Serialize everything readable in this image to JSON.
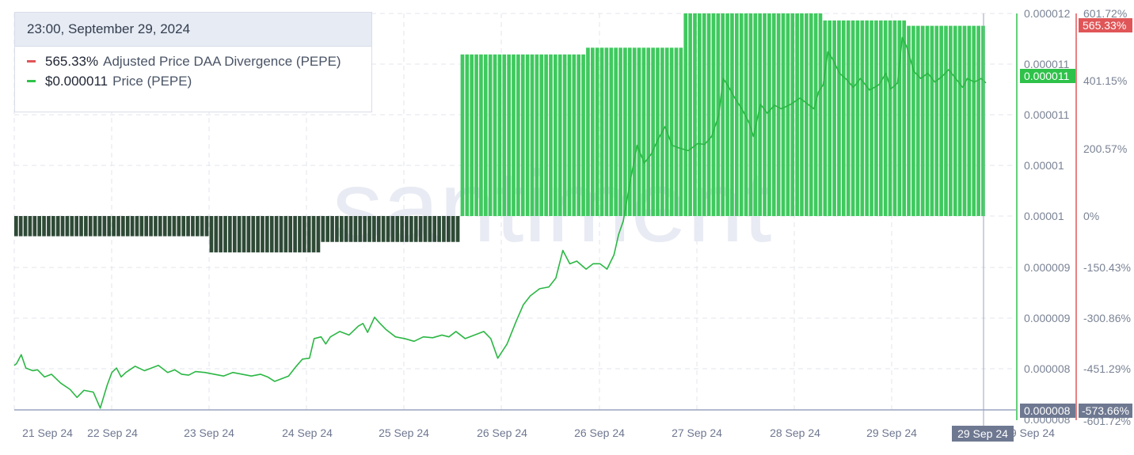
{
  "tooltip": {
    "date": "23:00, September 29, 2024",
    "items": [
      {
        "value": "565.33%",
        "label": "Adjusted Price DAA Divergence (PEPE)",
        "color": "#e05658"
      },
      {
        "value": "$0.000011",
        "label": "Price (PEPE)",
        "color": "#2fc24a"
      }
    ]
  },
  "watermark": "santiment",
  "colors": {
    "price_line": "#2bb744",
    "bar_positive": "#3fc95e",
    "bar_negative": "#2e4a36",
    "divergence_axis": "#e05658",
    "price_axis": "#2fc24a",
    "grid": "#e3e6ec",
    "crosshair": "#9aa3c0"
  },
  "chart_data": {
    "type": "bar+line",
    "x_ticks": [
      "21 Sep 24",
      "22 Sep 24",
      "23 Sep 24",
      "24 Sep 24",
      "25 Sep 24",
      "26 Sep 24",
      "26 Sep 24",
      "27 Sep 24",
      "28 Sep 24",
      "29 Sep 24",
      "29 Sep 24"
    ],
    "crosshair_date": "29 Sep 24",
    "price_axis": {
      "ticks": [
        "0.000012",
        "0.000011",
        "0.000011",
        "0.00001",
        "0.00001",
        "0.000009",
        "0.000009",
        "0.000008",
        "0.000008"
      ],
      "current_label": "0.000011",
      "bottom_label": "0.000008"
    },
    "divergence_axis": {
      "ticks": [
        "601.72%",
        "401.15%",
        "200.57%",
        "0%",
        "-150.43%",
        "-300.86%",
        "-451.29%",
        "-601.72%"
      ],
      "current_label": "565.33%",
      "bottom_label": "-573.66%",
      "range": [
        -601.72,
        601.72
      ]
    },
    "series": [
      {
        "name": "Adjusted Price DAA Divergence (PEPE)",
        "kind": "bar",
        "segments": [
          {
            "from": "21 Sep 24",
            "to": "22 Sep 24 18:00",
            "value": -60
          },
          {
            "from": "22 Sep 24 18:00",
            "to": "23 Sep 24 18:00",
            "value": -108
          },
          {
            "from": "23 Sep 24 18:00",
            "to": "25 Sep 24 00:00",
            "value": -77
          },
          {
            "from": "25 Sep 24 00:00",
            "to": "26 Sep 24 03:00",
            "value": 480
          },
          {
            "from": "26 Sep 24 03:00",
            "to": "27 Sep 24 00:00",
            "value": 500
          },
          {
            "from": "27 Sep 24 00:00",
            "to": "28 Sep 24 06:00",
            "value": 602
          },
          {
            "from": "28 Sep 24 06:00",
            "to": "29 Sep 24 00:00",
            "value": 581
          },
          {
            "from": "29 Sep 24 00:00",
            "to": "29 Sep 24 23:00",
            "value": 565
          }
        ]
      },
      {
        "name": "Price (PEPE)",
        "kind": "line",
        "unit": "USD (millionths)",
        "points": [
          [
            0,
            7.98
          ],
          [
            0.5,
            8.0
          ],
          [
            1.5,
            8.1
          ],
          [
            2.5,
            7.95
          ],
          [
            4,
            7.92
          ],
          [
            5,
            7.93
          ],
          [
            6.5,
            7.85
          ],
          [
            8,
            7.88
          ],
          [
            10,
            7.78
          ],
          [
            12,
            7.71
          ],
          [
            13.5,
            7.62
          ],
          [
            15,
            7.7
          ],
          [
            17,
            7.68
          ],
          [
            18.5,
            7.5
          ],
          [
            20,
            7.76
          ],
          [
            21,
            7.9
          ],
          [
            22,
            7.95
          ],
          [
            23,
            7.85
          ],
          [
            24,
            7.9
          ],
          [
            26,
            7.97
          ],
          [
            28,
            7.92
          ],
          [
            30,
            7.96
          ],
          [
            31,
            7.98
          ],
          [
            33,
            7.9
          ],
          [
            34.5,
            7.93
          ],
          [
            36,
            7.88
          ],
          [
            37.5,
            7.87
          ],
          [
            39,
            7.91
          ],
          [
            41,
            7.9
          ],
          [
            43,
            7.88
          ],
          [
            45,
            7.86
          ],
          [
            47,
            7.9
          ],
          [
            49,
            7.88
          ],
          [
            51,
            7.86
          ],
          [
            53,
            7.88
          ],
          [
            54.5,
            7.85
          ],
          [
            56,
            7.8
          ],
          [
            57.5,
            7.83
          ],
          [
            59,
            7.86
          ],
          [
            60.5,
            7.96
          ],
          [
            62,
            8.05
          ],
          [
            63.5,
            8.06
          ],
          [
            64.5,
            8.28
          ],
          [
            66,
            8.3
          ],
          [
            67,
            8.22
          ],
          [
            68,
            8.3
          ],
          [
            70,
            8.36
          ],
          [
            72,
            8.32
          ],
          [
            74,
            8.42
          ],
          [
            75,
            8.45
          ],
          [
            76,
            8.35
          ],
          [
            77.5,
            8.52
          ],
          [
            78.5,
            8.46
          ],
          [
            80,
            8.38
          ],
          [
            82,
            8.3
          ],
          [
            84,
            8.28
          ],
          [
            86,
            8.25
          ],
          [
            88,
            8.3
          ],
          [
            90,
            8.29
          ],
          [
            92,
            8.32
          ],
          [
            93.5,
            8.3
          ],
          [
            95,
            8.36
          ],
          [
            97,
            8.28
          ],
          [
            99,
            8.32
          ],
          [
            101,
            8.36
          ],
          [
            102.5,
            8.28
          ],
          [
            104,
            8.06
          ],
          [
            106,
            8.22
          ],
          [
            108,
            8.48
          ],
          [
            109.5,
            8.66
          ],
          [
            111,
            8.76
          ],
          [
            113,
            8.84
          ],
          [
            115,
            8.86
          ],
          [
            116.5,
            8.96
          ],
          [
            118,
            9.27
          ],
          [
            119.5,
            9.12
          ],
          [
            121,
            9.15
          ],
          [
            123,
            9.06
          ],
          [
            124.5,
            9.12
          ],
          [
            126,
            9.12
          ],
          [
            127.5,
            9.06
          ],
          [
            129,
            9.22
          ],
          [
            130,
            9.45
          ],
          [
            131,
            9.6
          ],
          [
            132.5,
            10.05
          ],
          [
            134,
            10.45
          ],
          [
            135.5,
            10.25
          ],
          [
            137,
            10.35
          ],
          [
            138.5,
            10.52
          ],
          [
            140,
            10.66
          ],
          [
            141.5,
            10.45
          ],
          [
            143,
            10.42
          ],
          [
            145,
            10.39
          ],
          [
            147,
            10.47
          ],
          [
            148.5,
            10.46
          ],
          [
            150,
            10.55
          ],
          [
            151.5,
            10.78
          ],
          [
            152.5,
            11.2
          ],
          [
            153.5,
            11.12
          ],
          [
            155,
            10.98
          ],
          [
            156.5,
            10.86
          ],
          [
            158,
            10.71
          ],
          [
            159,
            10.55
          ],
          [
            160.5,
            10.91
          ],
          [
            162,
            10.81
          ],
          [
            163.5,
            10.9
          ],
          [
            165,
            10.86
          ],
          [
            167,
            10.91
          ],
          [
            169,
            10.98
          ],
          [
            170.5,
            10.92
          ],
          [
            172,
            10.86
          ],
          [
            173,
            11.05
          ],
          [
            174,
            11.13
          ],
          [
            175,
            11.5
          ],
          [
            176,
            11.42
          ],
          [
            177.5,
            11.26
          ],
          [
            179,
            11.19
          ],
          [
            180.5,
            11.1
          ],
          [
            182,
            11.2
          ],
          [
            184,
            11.07
          ],
          [
            186,
            11.13
          ],
          [
            187.5,
            11.26
          ],
          [
            188.5,
            11.08
          ],
          [
            190,
            11.15
          ],
          [
            191,
            11.66
          ],
          [
            192,
            11.55
          ],
          [
            193.5,
            11.28
          ],
          [
            195,
            11.2
          ],
          [
            196.5,
            11.26
          ],
          [
            198,
            11.16
          ],
          [
            199.5,
            11.22
          ],
          [
            201,
            11.3
          ],
          [
            202.5,
            11.2
          ],
          [
            204,
            11.1
          ],
          [
            205,
            11.2
          ],
          [
            206.5,
            11.16
          ],
          [
            208,
            11.2
          ],
          [
            209,
            11.15
          ]
        ]
      }
    ]
  }
}
